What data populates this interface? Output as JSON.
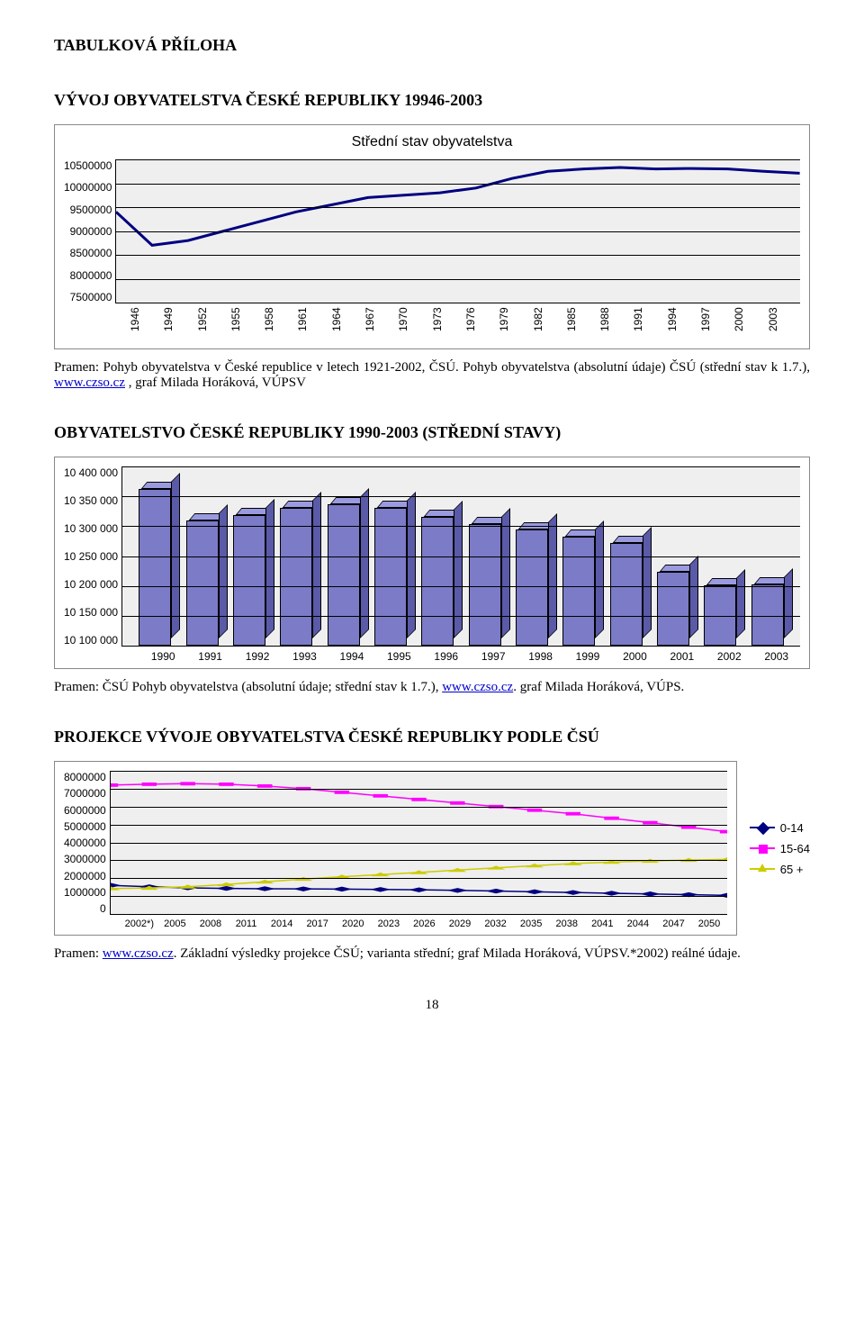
{
  "page_title": "TABULKOVÁ PŘÍLOHA",
  "page_number": "18",
  "chart1": {
    "section_heading": "VÝVOJ OBYVATELSTVA ČESKÉ REPUBLIKY 19946-2003",
    "title": "Střední stav obyvatelstva",
    "y_ticks": [
      "10500000",
      "10000000",
      "9500000",
      "9000000",
      "8500000",
      "8000000",
      "7500000"
    ],
    "x_ticks": [
      "1946",
      "1949",
      "1952",
      "1955",
      "1958",
      "1961",
      "1964",
      "1967",
      "1970",
      "1973",
      "1976",
      "1979",
      "1982",
      "1985",
      "1988",
      "1991",
      "1994",
      "1997",
      "2000",
      "2003"
    ],
    "ylim": [
      7500000,
      10500000
    ],
    "values": [
      9400000,
      8700000,
      8800000,
      9000000,
      9200000,
      9400000,
      9550000,
      9700000,
      9750000,
      9800000,
      9900000,
      10100000,
      10250000,
      10300000,
      10330000,
      10300000,
      10310000,
      10300000,
      10250000,
      10210000
    ],
    "line_color": "#000080",
    "line_width": 3,
    "plot_bg": "#efefef",
    "grid_color": "#000000",
    "source_prefix": "Pramen: Pohyb obyvatelstva v České republice v letech 1921-2002, ČSÚ. Pohyb obyvatelstva (absolutní údaje) ČSÚ (střední stav k 1.7.), ",
    "source_link": "www.czso.cz",
    "source_suffix": " , graf Milada Horáková, VÚPSV"
  },
  "chart2": {
    "section_heading": "OBYVATELSTVO ČESKÉ REPUBLIKY 1990-2003 (STŘEDNÍ STAVY)",
    "y_ticks": [
      "10 400 000",
      "10 350 000",
      "10 300 000",
      "10 250 000",
      "10 200 000",
      "10 150 000",
      "10 100 000"
    ],
    "x_ticks": [
      "1990",
      "1991",
      "1992",
      "1993",
      "1994",
      "1995",
      "1996",
      "1997",
      "1998",
      "1999",
      "2000",
      "2001",
      "2002",
      "2003"
    ],
    "ylim": [
      10100000,
      10400000
    ],
    "values": [
      10363000,
      10309000,
      10318000,
      10331000,
      10336000,
      10331000,
      10315000,
      10304000,
      10295000,
      10283000,
      10272000,
      10224000,
      10201000,
      10202000
    ],
    "bar_front_color": "#7b7bc8",
    "bar_top_color": "#9a9ae0",
    "bar_side_color": "#5a5aa8",
    "plot_bg": "#efefef",
    "grid_color": "#000000",
    "source_prefix": "Pramen:  ČSÚ Pohyb obyvatelstva (absolutní údaje; střední stav k 1.7.), ",
    "source_link": "www.czso.cz",
    "source_suffix": ". graf Milada Horáková, VÚPS."
  },
  "chart3": {
    "section_heading": "PROJEKCE VÝVOJE OBYVATELSTVA ČESKÉ REPUBLIKY PODLE ČSÚ",
    "y_ticks": [
      "8000000",
      "7000000",
      "6000000",
      "5000000",
      "4000000",
      "3000000",
      "2000000",
      "1000000",
      "0"
    ],
    "x_ticks": [
      "2002*)",
      "2005",
      "2008",
      "2011",
      "2014",
      "2017",
      "2020",
      "2023",
      "2026",
      "2029",
      "2032",
      "2035",
      "2038",
      "2041",
      "2044",
      "2047",
      "2050"
    ],
    "ylim": [
      0,
      8000000
    ],
    "series": [
      {
        "name": "0-14",
        "color": "#000080",
        "marker": "diamond",
        "values": [
          1600000,
          1520000,
          1460000,
          1430000,
          1410000,
          1400000,
          1390000,
          1370000,
          1350000,
          1320000,
          1280000,
          1240000,
          1200000,
          1160000,
          1120000,
          1080000,
          1040000
        ]
      },
      {
        "name": "15-64",
        "color": "#ff00ff",
        "marker": "square",
        "values": [
          7200000,
          7250000,
          7280000,
          7250000,
          7150000,
          7000000,
          6800000,
          6600000,
          6400000,
          6200000,
          6000000,
          5800000,
          5600000,
          5350000,
          5100000,
          4850000,
          4600000
        ]
      },
      {
        "name": "65 +",
        "color": "#cccc00",
        "marker": "triangle",
        "values": [
          1420000,
          1450000,
          1520000,
          1650000,
          1800000,
          1950000,
          2080000,
          2200000,
          2320000,
          2450000,
          2580000,
          2700000,
          2820000,
          2900000,
          2960000,
          3010000,
          3050000
        ]
      }
    ],
    "plot_bg": "#efefef",
    "grid_color": "#000000",
    "source_prefix": "Pramen: ",
    "source_link": "www.czso.cz",
    "source_suffix": ". Základní výsledky projekce ČSÚ; varianta střední; graf Milada Horáková, VÚPSV.*2002) reálné údaje."
  }
}
